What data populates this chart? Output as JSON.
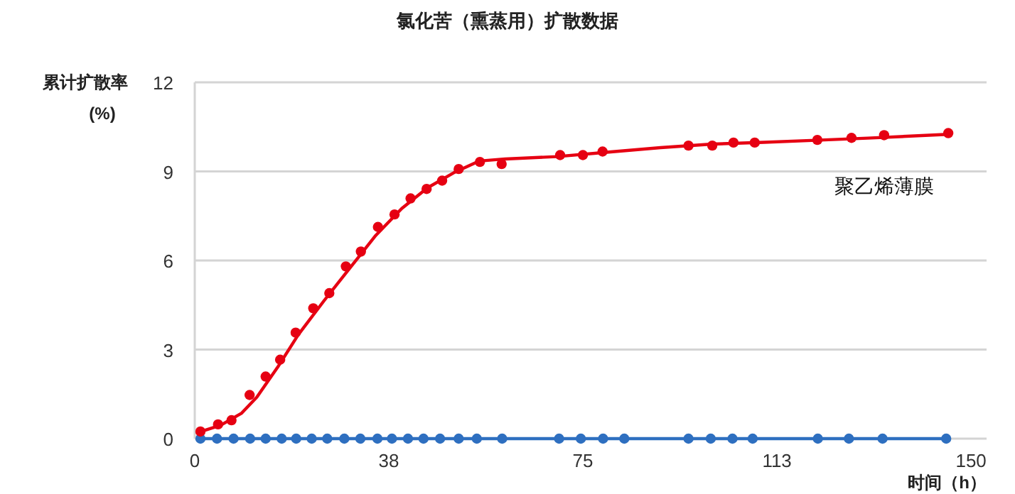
{
  "chart_data": {
    "type": "scatter",
    "title": "氯化苦（熏蒸用）扩散数据",
    "xlabel": "时间（h）",
    "ylabel": "累计扩散率 (%)",
    "xlim": [
      0,
      153
    ],
    "ylim": [
      0,
      12
    ],
    "xticks": [
      0,
      {
        "value": 37.5,
        "label": "38"
      },
      75,
      {
        "value": 112.5,
        "label": "113"
      },
      150
    ],
    "yticks": [
      0,
      3,
      6,
      9,
      12
    ],
    "grid": "y",
    "series": [
      {
        "name": "聚乙烯薄膜",
        "marker": "circle",
        "color": "#e60012",
        "x": [
          1.1,
          4.5,
          7.1,
          10.6,
          13.7,
          16.5,
          19.5,
          22.9,
          26.0,
          29.2,
          32.1,
          35.4,
          38.6,
          41.7,
          44.8,
          47.8,
          51.0,
          55.1,
          59.3,
          70.6,
          75.0,
          78.8,
          95.4,
          100.0,
          104.1,
          108.2,
          120.3,
          126.9,
          133.2,
          145.6
        ],
        "values": [
          0.24,
          0.48,
          0.62,
          1.47,
          2.09,
          2.66,
          3.57,
          4.39,
          4.9,
          5.8,
          6.3,
          7.13,
          7.55,
          8.09,
          8.41,
          8.69,
          9.08,
          9.32,
          9.25,
          9.55,
          9.55,
          9.67,
          9.87,
          9.87,
          9.97,
          9.97,
          10.06,
          10.13,
          10.22,
          10.29
        ]
      },
      {
        "type": "line",
        "marker": "none",
        "color": "#e60012",
        "x": [
          0.5,
          5,
          9,
          12,
          16,
          20,
          25,
          30,
          35,
          40,
          45,
          50,
          55,
          60,
          70,
          80,
          90,
          100,
          110,
          120,
          130,
          145.6
        ],
        "values": [
          0.2,
          0.45,
          0.85,
          1.4,
          2.4,
          3.5,
          4.65,
          5.75,
          6.85,
          7.75,
          8.45,
          8.95,
          9.35,
          9.42,
          9.5,
          9.65,
          9.8,
          9.92,
          9.98,
          10.05,
          10.12,
          10.25
        ]
      },
      {
        "type": "line",
        "marker": "circle",
        "color": "#2e6fc0",
        "x": [
          1.1,
          4.3,
          7.5,
          10.7,
          13.7,
          16.8,
          19.6,
          22.6,
          25.6,
          28.9,
          32.0,
          35.3,
          38.1,
          41.2,
          44.2,
          47.4,
          51.0,
          54.5,
          59.4,
          70.4,
          74.6,
          78.9,
          83.0,
          95.4,
          99.7,
          103.9,
          107.8,
          120.4,
          126.4,
          132.9,
          145.2
        ],
        "values": [
          0,
          0,
          0,
          0,
          0,
          0,
          0,
          0,
          0,
          0,
          0,
          0,
          0,
          0,
          0,
          0,
          0,
          0,
          0,
          0,
          0,
          0,
          0,
          0,
          0,
          0,
          0,
          0,
          0,
          0,
          0
        ]
      }
    ]
  }
}
